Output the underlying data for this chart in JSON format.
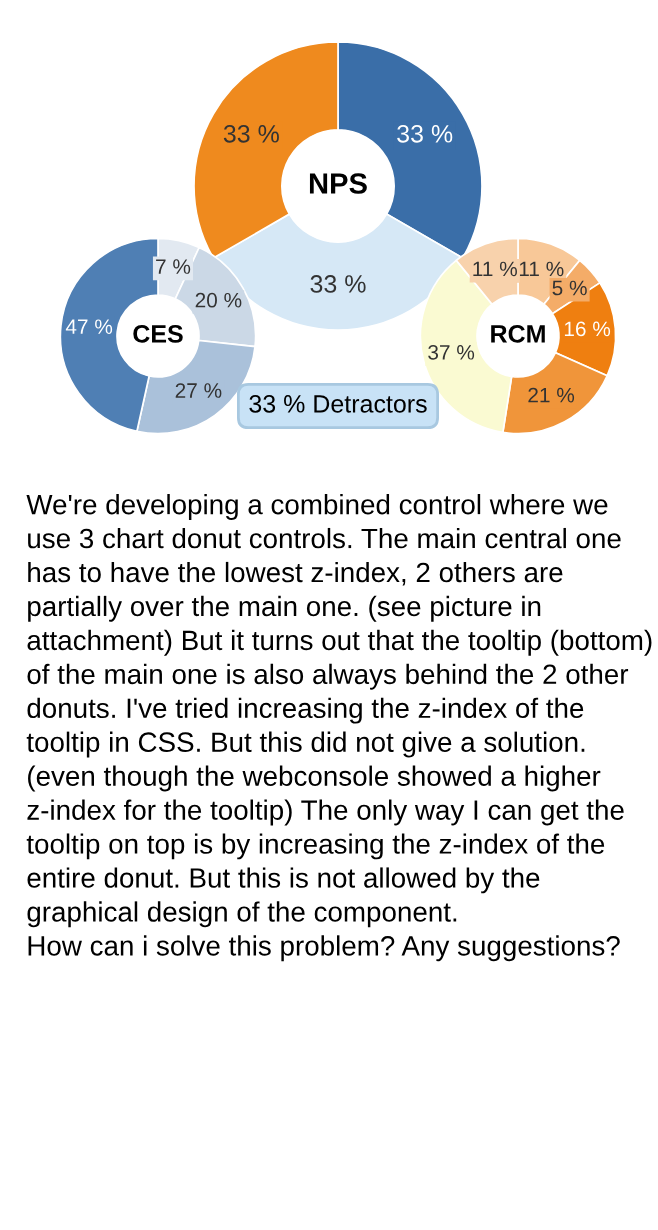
{
  "chart_data": [
    {
      "type": "donut",
      "title": "NPS",
      "categories": [
        null,
        null,
        null
      ],
      "values": [
        33,
        33,
        33
      ],
      "value_labels": [
        "33 %",
        "33 %",
        "33 %"
      ],
      "colors": [
        "#3a6ea8",
        "#d6e8f6",
        "#ef8a1e"
      ],
      "annotations": [
        "33 % Detractors"
      ]
    },
    {
      "type": "donut",
      "title": "CES",
      "categories": [
        null,
        null,
        null,
        null
      ],
      "values": [
        7,
        20,
        27,
        47
      ],
      "value_labels": [
        "7 %",
        "20 %",
        "27 %",
        "47 %"
      ],
      "colors": [
        "#e2e9f1",
        "#cbd8e6",
        "#aac1da",
        "#4f7fb4"
      ]
    },
    {
      "type": "donut",
      "title": "RCM",
      "categories": [
        null,
        null,
        null,
        null,
        null,
        null
      ],
      "values": [
        11,
        5,
        16,
        21,
        37,
        11
      ],
      "value_labels": [
        "11 %",
        "5 %",
        "16 %",
        "21 %",
        "37 %",
        "11 %"
      ],
      "colors": [
        "#f8c898",
        "#f4ac68",
        "#ef7f10",
        "#f0953a",
        "#fafad2",
        "#f8d2ac"
      ]
    },
    {
      "type": "other",
      "annotations": [
        "We're developing a combined control where we use 3 chart donut controls. The main central one has to have the lowest z-index, 2 others are partially over the main one. (see picture in attachment) But it turns out that the tooltip (bottom) of the main one is also always behind the 2 other donuts. I've tried increasing the z-index of the tooltip in CSS. But this did not give a solution. (even though the webconsole showed a higher z-index for the tooltip) The only way I can get the tooltip on top is by increasing the z-index of the entire donut. But this is not allowed by the graphical design of the component.\nHow can i solve this problem? Any suggestions?"
      ]
    }
  ]
}
